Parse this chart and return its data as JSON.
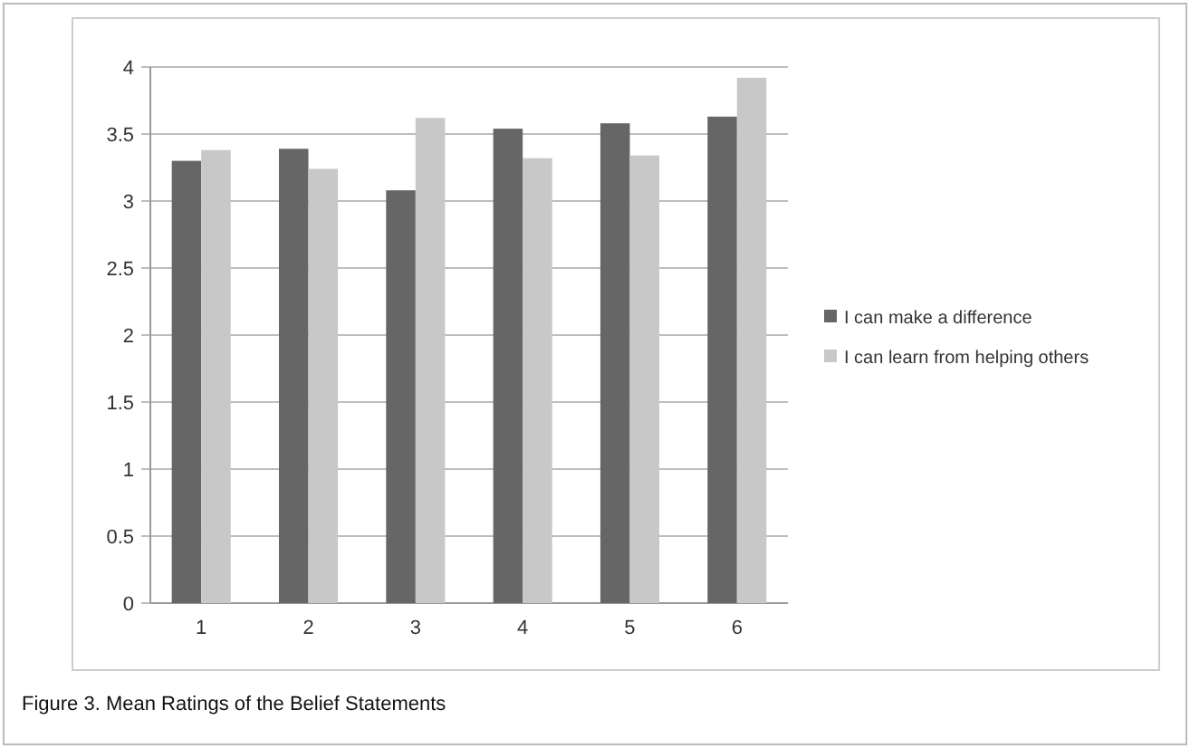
{
  "chart_data": {
    "type": "bar",
    "title": "Figure 3. Mean Ratings of the Belief Statements",
    "categories": [
      "1",
      "2",
      "3",
      "4",
      "5",
      "6"
    ],
    "series": [
      {
        "name": "I can make a difference",
        "color": "#666666",
        "values": [
          3.3,
          3.39,
          3.08,
          3.54,
          3.58,
          3.63
        ]
      },
      {
        "name": "I can learn from helping others",
        "color": "#c8c8c8",
        "values": [
          3.38,
          3.24,
          3.62,
          3.32,
          3.34,
          3.92
        ]
      }
    ],
    "ylim": [
      0,
      4
    ],
    "yticks": [
      0,
      0.5,
      1,
      1.5,
      2,
      2.5,
      3,
      3.5,
      4
    ],
    "grid": "y",
    "legend": "right"
  }
}
